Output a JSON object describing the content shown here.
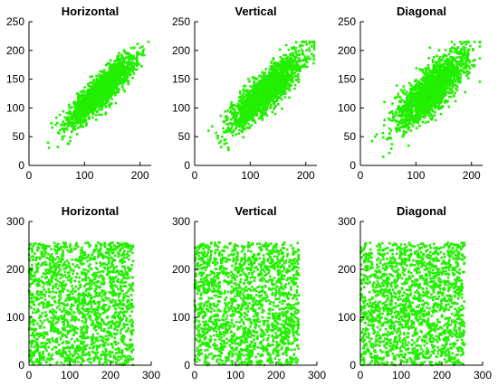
{
  "colors": {
    "points": "#22ee00",
    "axes": "#000000",
    "background": "#ffffff"
  },
  "chart_data": [
    {
      "type": "scatter",
      "title": "Horizontal",
      "xlim": [
        0,
        220
      ],
      "ylim": [
        0,
        250
      ],
      "xticks": [
        0,
        100,
        200
      ],
      "yticks": [
        0,
        50,
        100,
        150,
        200,
        250
      ],
      "distribution": "correlated",
      "center": [
        130,
        130
      ],
      "spread": 30,
      "corr": 0.88,
      "clip": [
        15,
        215
      ],
      "n": 1800
    },
    {
      "type": "scatter",
      "title": "Vertical",
      "xlim": [
        0,
        220
      ],
      "ylim": [
        0,
        250
      ],
      "xticks": [
        0,
        100,
        200
      ],
      "yticks": [
        0,
        50,
        100,
        150,
        200,
        250
      ],
      "distribution": "correlated",
      "center": [
        130,
        130
      ],
      "spread": 32,
      "corr": 0.84,
      "clip": [
        15,
        215
      ],
      "n": 1800
    },
    {
      "type": "scatter",
      "title": "Diagonal",
      "xlim": [
        0,
        220
      ],
      "ylim": [
        0,
        250
      ],
      "xticks": [
        0,
        100,
        200
      ],
      "yticks": [
        0,
        50,
        100,
        150,
        200,
        250
      ],
      "distribution": "correlated",
      "center": [
        128,
        130
      ],
      "spread": 33,
      "corr": 0.8,
      "clip": [
        15,
        215
      ],
      "n": 1800
    },
    {
      "type": "scatter",
      "title": "Horizontal",
      "xlim": [
        0,
        300
      ],
      "ylim": [
        0,
        300
      ],
      "xticks": [
        0,
        100,
        200,
        300
      ],
      "yticks": [
        0,
        100,
        200,
        300
      ],
      "distribution": "uniform",
      "range": [
        0,
        256
      ],
      "n": 1800
    },
    {
      "type": "scatter",
      "title": "Vertical",
      "xlim": [
        0,
        300
      ],
      "ylim": [
        0,
        300
      ],
      "xticks": [
        0,
        100,
        200,
        300
      ],
      "yticks": [
        0,
        100,
        200,
        300
      ],
      "distribution": "uniform",
      "range": [
        0,
        256
      ],
      "n": 1800
    },
    {
      "type": "scatter",
      "title": "Diagonal",
      "xlim": [
        0,
        300
      ],
      "ylim": [
        0,
        300
      ],
      "xticks": [
        0,
        100,
        200,
        300
      ],
      "yticks": [
        0,
        100,
        200,
        300
      ],
      "distribution": "uniform",
      "range": [
        0,
        256
      ],
      "n": 1800
    }
  ]
}
